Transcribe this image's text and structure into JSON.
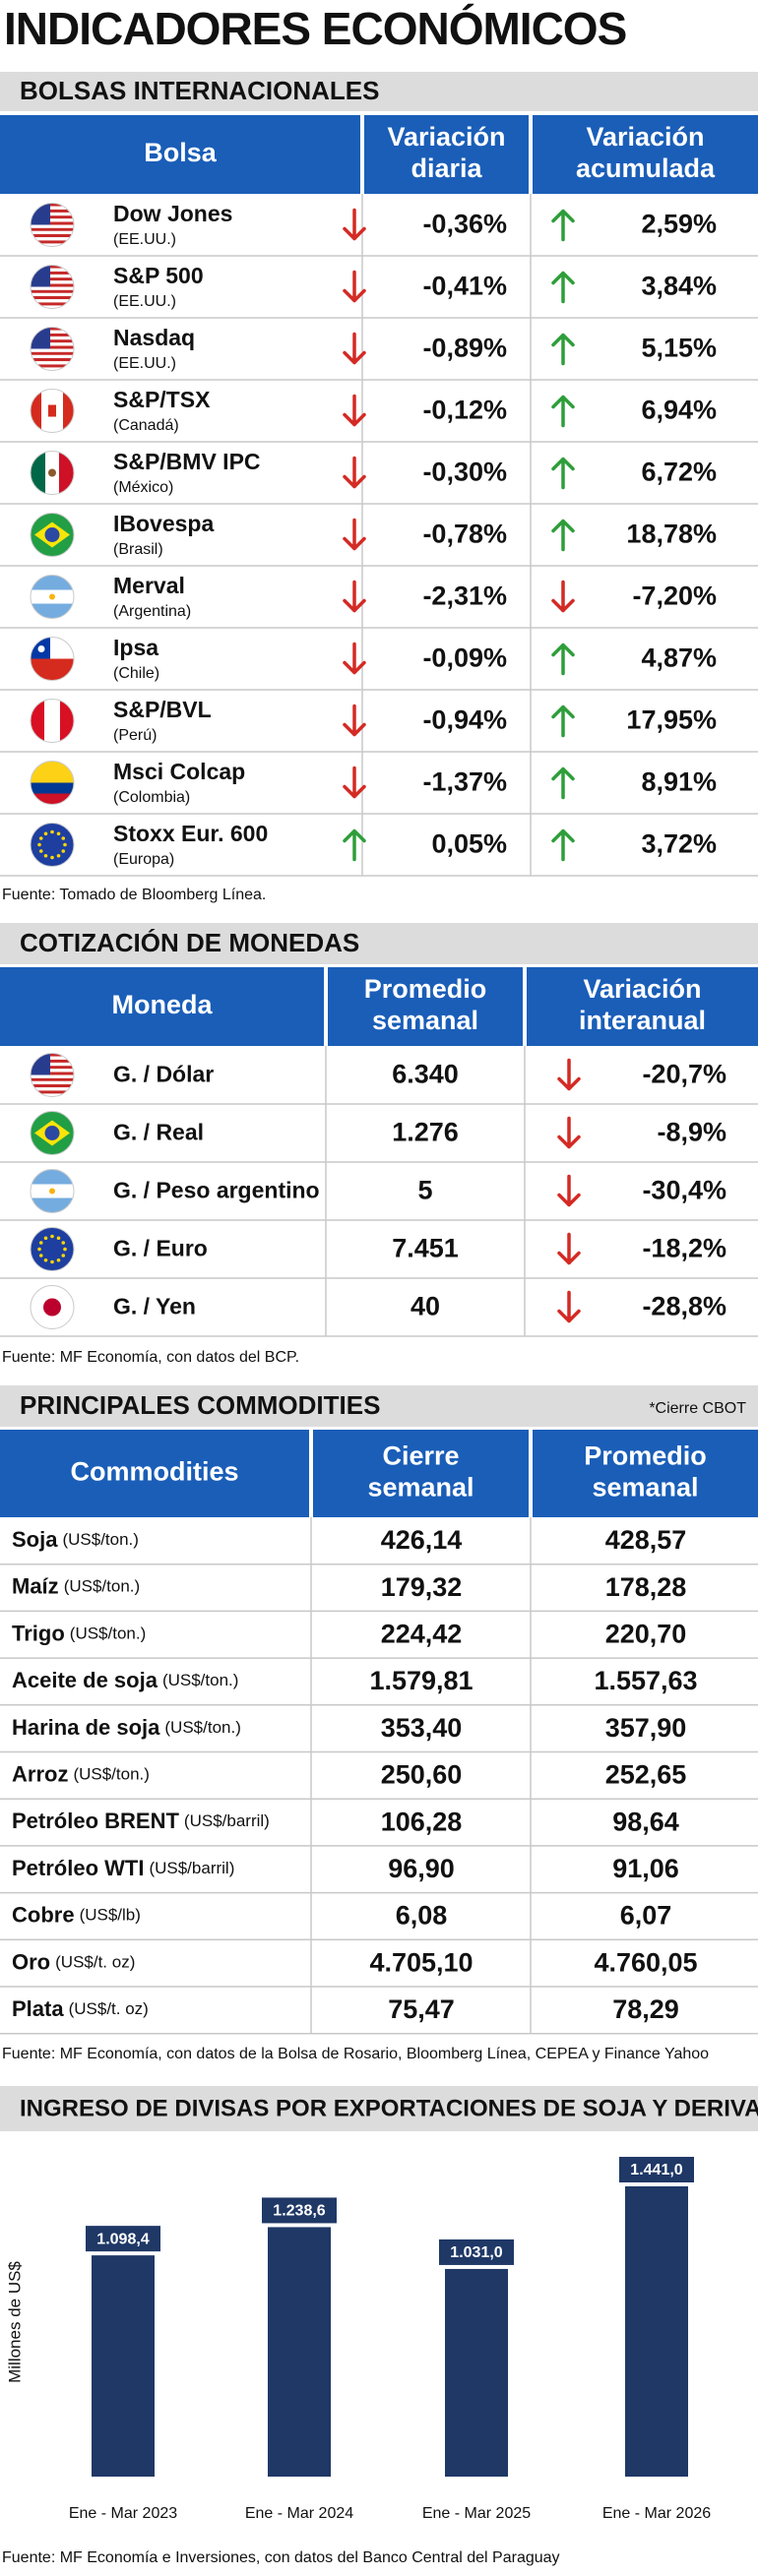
{
  "title": "INDICADORES ECONÓMICOS",
  "bolsas": {
    "title": "BOLSAS INTERNACIONALES",
    "headers": [
      [
        "Bolsa"
      ],
      [
        "Variación",
        "diaria"
      ],
      [
        "Variación",
        "acumulada"
      ]
    ],
    "rows": [
      {
        "name": "Dow Jones",
        "country": "(EE.UU.)",
        "daily": "-0,36%",
        "accum": "2,59%"
      },
      {
        "name": "S&P 500",
        "country": "(EE.UU.)",
        "daily": "-0,41%",
        "accum": "3,84%"
      },
      {
        "name": "Nasdaq",
        "country": "(EE.UU.)",
        "daily": "-0,89%",
        "accum": "5,15%"
      },
      {
        "name": "S&P/TSX",
        "country": "(Canadá)",
        "daily": "-0,12%",
        "accum": "6,94%"
      },
      {
        "name": "S&P/BMV IPC",
        "country": "(México)",
        "daily": "-0,30%",
        "accum": "6,72%"
      },
      {
        "name": "IBovespa",
        "country": "(Brasil)",
        "daily": "-0,78%",
        "accum": "18,78%"
      },
      {
        "name": "Merval",
        "country": "(Argentina)",
        "daily": "-2,31%",
        "accum": "-7,20%"
      },
      {
        "name": "Ipsa",
        "country": "(Chile)",
        "daily": "-0,09%",
        "accum": "4,87%"
      },
      {
        "name": "S&P/BVL",
        "country": "(Perú)",
        "daily": "-0,94%",
        "accum": "17,95%"
      },
      {
        "name": "Msci Colcap",
        "country": "(Colombia)",
        "daily": "-1,37%",
        "accum": "8,91%"
      },
      {
        "name": "Stoxx Eur. 600",
        "country": "(Europa)",
        "daily": "0,05%",
        "accum": "3,72%"
      }
    ],
    "source": "Fuente: Tomado de Bloomberg Línea."
  },
  "monedas": {
    "title": "COTIZACIÓN DE MONEDAS",
    "headers": [
      [
        "Moneda"
      ],
      [
        "Promedio",
        "semanal"
      ],
      [
        "Variación",
        "interanual"
      ]
    ],
    "rows": [
      {
        "name": "G. / Dólar",
        "average": "6.340",
        "change": "-20,7%"
      },
      {
        "name": "G. / Real",
        "average": "1.276",
        "change": "-8,9%"
      },
      {
        "name": "G. / Peso argentino",
        "average": "5",
        "change": "-30,4%"
      },
      {
        "name": "G. / Euro",
        "average": "7.451",
        "change": "-18,2%"
      },
      {
        "name": "G. / Yen",
        "average": "40",
        "change": "-28,8%"
      }
    ],
    "source": "Fuente: MF Economía, con datos del BCP."
  },
  "commodities": {
    "title": "PRINCIPALES COMMODITIES",
    "note": "*Cierre CBOT",
    "headers": [
      [
        "Commodities"
      ],
      [
        "Cierre",
        "semanal"
      ],
      [
        "Promedio",
        "semanal"
      ]
    ],
    "rows": [
      {
        "name": "Soja",
        "unit": "(US$/ton.)",
        "close": "426,14",
        "average": "428,57"
      },
      {
        "name": "Maíz",
        "unit": "(US$/ton.)",
        "close": "179,32",
        "average": "178,28"
      },
      {
        "name": "Trigo",
        "unit": "(US$/ton.)",
        "close": "224,42",
        "average": "220,70"
      },
      {
        "name": "Aceite de soja",
        "unit": "(US$/ton.)",
        "close": "1.579,81",
        "average": "1.557,63"
      },
      {
        "name": "Harina de soja",
        "unit": "(US$/ton.)",
        "close": "353,40",
        "average": "357,90"
      },
      {
        "name": "Arroz",
        "unit": "(US$/ton.)",
        "close": "250,60",
        "average": "252,65"
      },
      {
        "name": "Petróleo BRENT",
        "unit": "(US$/barril)",
        "close": "106,28",
        "average": "98,64"
      },
      {
        "name": "Petróleo WTI",
        "unit": "(US$/barril)",
        "close": "96,90",
        "average": "91,06"
      },
      {
        "name": "Cobre",
        "unit": "(US$/lb)",
        "close": "6,08",
        "average": "6,07"
      },
      {
        "name": "Oro",
        "unit": "(US$/t. oz)",
        "close": "4.705,10",
        "average": "4.760,05"
      },
      {
        "name": "Plata",
        "unit": "(US$/t. oz)",
        "close": "75,47",
        "average": "78,29"
      }
    ],
    "source": "Fuente: MF Economía, con datos de la Bolsa de Rosario, Bloomberg Línea, CEPEA y Finance Yahoo"
  },
  "chart_data": {
    "type": "bar",
    "title": "INGRESO DE DIVISAS POR EXPORTACIONES DE SOJA Y DERIVADOS",
    "ylabel": "Millones de US$",
    "categories": [
      "Ene - Mar 2023",
      "Ene - Mar 2024",
      "Ene - Mar 2025",
      "Ene - Mar 2026"
    ],
    "values": [
      1098.4,
      1238.6,
      1031.0,
      1441.0
    ],
    "value_labels": [
      "1.098,4",
      "1.238,6",
      "1.031,0",
      "1.441,0"
    ],
    "color": "#1f3866",
    "source": "Fuente: MF Economía e Inversiones, con datos del Banco Central del Paraguay"
  }
}
